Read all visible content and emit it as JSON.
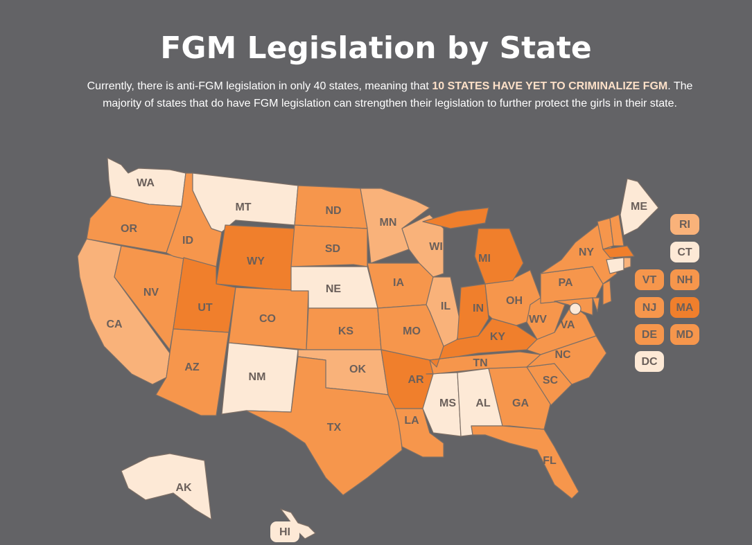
{
  "header": {
    "title": "FGM Legislation by State",
    "intro": {
      "before": "Currently, there is anti-FGM legislation in only 40 states, meaning that ",
      "highlight": "10 STATES HAVE YET TO CRIMINALIZE FGM",
      "after": ". The majority of states that do have FGM legislation can strengthen their legislation to further protect the girls in their state."
    }
  },
  "map": {
    "states": [
      {
        "label": "WA",
        "color": "#fde9d6"
      },
      {
        "label": "OR",
        "color": "#f6964c"
      },
      {
        "label": "CA",
        "color": "#f9b27a"
      },
      {
        "label": "NV",
        "color": "#f6964c"
      },
      {
        "label": "ID",
        "color": "#f6964c"
      },
      {
        "label": "MT",
        "color": "#fde9d6"
      },
      {
        "label": "WY",
        "color": "#f07f2c"
      },
      {
        "label": "UT",
        "color": "#f07f2c"
      },
      {
        "label": "AZ",
        "color": "#f6964c"
      },
      {
        "label": "CO",
        "color": "#f6964c"
      },
      {
        "label": "NM",
        "color": "#fde9d6"
      },
      {
        "label": "ND",
        "color": "#f6964c"
      },
      {
        "label": "SD",
        "color": "#f6964c"
      },
      {
        "label": "NE",
        "color": "#fde9d6"
      },
      {
        "label": "KS",
        "color": "#f6964c"
      },
      {
        "label": "OK",
        "color": "#f9b27a"
      },
      {
        "label": "TX",
        "color": "#f6964c"
      },
      {
        "label": "MN",
        "color": "#f9b27a"
      },
      {
        "label": "IA",
        "color": "#f6964c"
      },
      {
        "label": "WI",
        "color": "#f9b27a"
      },
      {
        "label": "IL",
        "color": "#f9b27a"
      },
      {
        "label": "MO",
        "color": "#f6964c"
      },
      {
        "label": "AR",
        "color": "#f07f2c"
      },
      {
        "label": "LA",
        "color": "#f6964c"
      },
      {
        "label": "MS",
        "color": "#fde9d6"
      },
      {
        "label": "AL",
        "color": "#fde9d6"
      },
      {
        "label": "TN",
        "color": "#f6964c"
      },
      {
        "label": "KY",
        "color": "#f07f2c"
      },
      {
        "label": "IN",
        "color": "#f07f2c"
      },
      {
        "label": "OH",
        "color": "#f6964c"
      },
      {
        "label": "MI",
        "color": "#f07f2c"
      },
      {
        "label": "GA",
        "color": "#f6964c"
      },
      {
        "label": "FL",
        "color": "#f6964c"
      },
      {
        "label": "SC",
        "color": "#f6964c"
      },
      {
        "label": "NC",
        "color": "#f6964c"
      },
      {
        "label": "VA",
        "color": "#f6964c"
      },
      {
        "label": "WV",
        "color": "#f6964c"
      },
      {
        "label": "PA",
        "color": "#f6964c"
      },
      {
        "label": "NY",
        "color": "#f6964c"
      },
      {
        "label": "VT",
        "color": "#f6964c"
      },
      {
        "label": "NH",
        "color": "#f6964c"
      },
      {
        "label": "ME",
        "color": "#fde9d6"
      },
      {
        "label": "MA",
        "color": "#f07f2c"
      },
      {
        "label": "CT",
        "color": "#fde9d6"
      },
      {
        "label": "RI",
        "color": "#f9b27a"
      },
      {
        "label": "NJ",
        "color": "#f6964c"
      },
      {
        "label": "DE",
        "color": "#f6964c"
      },
      {
        "label": "MD",
        "color": "#f6964c"
      },
      {
        "label": "DC",
        "color": "#fde9d6"
      },
      {
        "label": "AK",
        "color": "#fde9d6"
      },
      {
        "label": "HI",
        "color": "#fde9d6"
      }
    ]
  }
}
